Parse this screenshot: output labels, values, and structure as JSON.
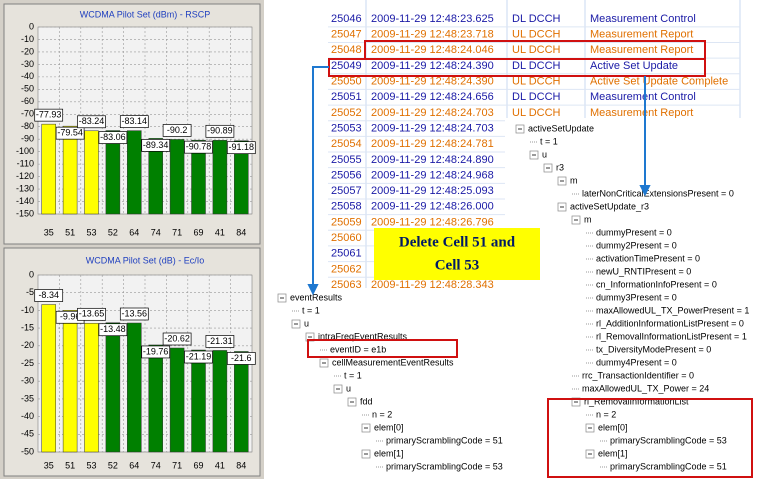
{
  "chart_data": [
    {
      "type": "bar",
      "title": "WCDMA Pilot Set (dBm) - RSCP",
      "categories": [
        "35",
        "51",
        "53",
        "52",
        "64",
        "74",
        "71",
        "69",
        "41",
        "84"
      ],
      "values": [
        -77.93,
        -79.54,
        -83.24,
        -83.06,
        -83.14,
        -89.34,
        -90.2,
        -90.78,
        -90.89,
        -91.18
      ],
      "colors": [
        "#ffff00",
        "#ffff00",
        "#ffff00",
        "#008000",
        "#008000",
        "#008000",
        "#008000",
        "#008000",
        "#008000",
        "#008000"
      ],
      "ylim": [
        -150,
        0
      ],
      "yticks": [
        0,
        -10,
        -20,
        -30,
        -40,
        -50,
        -60,
        -70,
        -80,
        -90,
        -100,
        -110,
        -120,
        -130,
        -140,
        -150
      ],
      "grid": true
    },
    {
      "type": "bar",
      "title": "WCDMA Pilot Set (dB) - Ec/Io",
      "categories": [
        "35",
        "51",
        "53",
        "52",
        "64",
        "74",
        "71",
        "69",
        "41",
        "84"
      ],
      "values": [
        -8.34,
        -9.96,
        -13.65,
        -13.48,
        -13.56,
        -19.76,
        -20.62,
        -21.19,
        -21.31,
        -21.6
      ],
      "colors": [
        "#ffff00",
        "#ffff00",
        "#ffff00",
        "#008000",
        "#008000",
        "#008000",
        "#008000",
        "#008000",
        "#008000",
        "#008000"
      ],
      "ylim": [
        -50,
        0
      ],
      "yticks": [
        0,
        -5,
        -10,
        -15,
        -20,
        -25,
        -30,
        -35,
        -40,
        -45,
        -50
      ],
      "grid": true
    }
  ],
  "log": {
    "rows": [
      {
        "id": "25046",
        "time": "2009-11-29 12:48:23.625",
        "dir": "DL DCCH",
        "message": "Measurement Control",
        "color": "#1a1aa6"
      },
      {
        "id": "25047",
        "time": "2009-11-29 12:48:23.718",
        "dir": "UL DCCH",
        "message": "Measurement Report",
        "color": "#e07000"
      },
      {
        "id": "25048",
        "time": "2009-11-29 12:48:24.046",
        "dir": "UL DCCH",
        "message": "Measurement Report",
        "color": "#e07000"
      },
      {
        "id": "25049",
        "time": "2009-11-29 12:48:24.390",
        "dir": "DL DCCH",
        "message": "Active Set Update",
        "color": "#1a1aa6"
      },
      {
        "id": "25050",
        "time": "2009-11-29 12:48:24.390",
        "dir": "UL DCCH",
        "message": "Active Set Update Complete",
        "color": "#e07000"
      },
      {
        "id": "25051",
        "time": "2009-11-29 12:48:24.656",
        "dir": "DL DCCH",
        "message": "Measurement Control",
        "color": "#1a1aa6"
      },
      {
        "id": "25052",
        "time": "2009-11-29 12:48:24.703",
        "dir": "UL DCCH",
        "message": "Measurement Report",
        "color": "#e07000"
      },
      {
        "id": "25053",
        "time": "2009-11-29 12:48:24.703",
        "color": "#1a1aa6"
      },
      {
        "id": "25054",
        "time": "2009-11-29 12:48:24.781",
        "color": "#e07000"
      },
      {
        "id": "25055",
        "time": "2009-11-29 12:48:24.890",
        "color": "#1a1aa6"
      },
      {
        "id": "25056",
        "time": "2009-11-29 12:48:24.968",
        "color": "#1a1aa6"
      },
      {
        "id": "25057",
        "time": "2009-11-29 12:48:25.093",
        "color": "#1a1aa6"
      },
      {
        "id": "25058",
        "time": "2009-11-29 12:48:26.000",
        "color": "#1a1aa6"
      },
      {
        "id": "25059",
        "time": "2009-11-29 12:48:26.796",
        "color": "#e07000"
      },
      {
        "id": "25060",
        "color": "#e07000"
      },
      {
        "id": "25061",
        "color": "#1a1aa6"
      },
      {
        "id": "25062",
        "color": "#e07000"
      },
      {
        "id": "25063",
        "time": "2009-11-29 12:48:28.343",
        "color": "#e07000"
      }
    ]
  },
  "callout": {
    "lines": [
      "Delete Cell 51 and",
      "Cell 53"
    ]
  },
  "tree_left": {
    "label": "eventResults",
    "children": [
      {
        "label": "t = 1"
      },
      {
        "label": "u",
        "children": [
          {
            "label": "intraFreqEventResults",
            "children": [
              {
                "label": "eventID = e1b"
              },
              {
                "label": "cellMeasurementEventResults",
                "children": [
                  {
                    "label": "t = 1"
                  },
                  {
                    "label": "u",
                    "children": [
                      {
                        "label": "fdd",
                        "children": [
                          {
                            "label": "n = 2"
                          },
                          {
                            "label": "elem[0]",
                            "children": [
                              {
                                "label": "primaryScramblingCode = 51"
                              }
                            ]
                          },
                          {
                            "label": "elem[1]",
                            "children": [
                              {
                                "label": "primaryScramblingCode = 53"
                              }
                            ]
                          }
                        ]
                      }
                    ]
                  }
                ]
              }
            ]
          }
        ]
      }
    ]
  },
  "tree_right": {
    "label": "activeSetUpdate",
    "children": [
      {
        "label": "t = 1"
      },
      {
        "label": "u",
        "children": [
          {
            "label": "r3",
            "children": [
              {
                "label": "m",
                "children": [
                  {
                    "label": "laterNonCriticalExtensionsPresent = 0"
                  }
                ]
              },
              {
                "label": "activeSetUpdate_r3",
                "children": [
                  {
                    "label": "m",
                    "children": [
                      {
                        "label": "dummyPresent = 0"
                      },
                      {
                        "label": "dummy2Present = 0"
                      },
                      {
                        "label": "activationTimePresent = 0"
                      },
                      {
                        "label": "newU_RNTIPresent = 0"
                      },
                      {
                        "label": "cn_InformationInfoPresent = 0"
                      },
                      {
                        "label": "dummy3Present = 0"
                      },
                      {
                        "label": "maxAllowedUL_TX_PowerPresent = 1"
                      },
                      {
                        "label": "rl_AdditionInformationListPresent = 0"
                      },
                      {
                        "label": "rl_RemovalInformationListPresent = 1"
                      },
                      {
                        "label": "tx_DiversityModePresent = 0"
                      },
                      {
                        "label": "dummy4Present = 0"
                      }
                    ]
                  },
                  {
                    "label": "rrc_TransactionIdentifier = 0"
                  },
                  {
                    "label": "maxAllowedUL_TX_Power = 24"
                  },
                  {
                    "label": "rl_RemovalInformationList",
                    "children": [
                      {
                        "label": "n = 2"
                      },
                      {
                        "label": "elem[0]",
                        "children": [
                          {
                            "label": "primaryScramblingCode = 53"
                          }
                        ]
                      },
                      {
                        "label": "elem[1]",
                        "children": [
                          {
                            "label": "primaryScramblingCode = 51"
                          }
                        ]
                      }
                    ]
                  }
                ]
              }
            ]
          }
        ]
      }
    ]
  }
}
